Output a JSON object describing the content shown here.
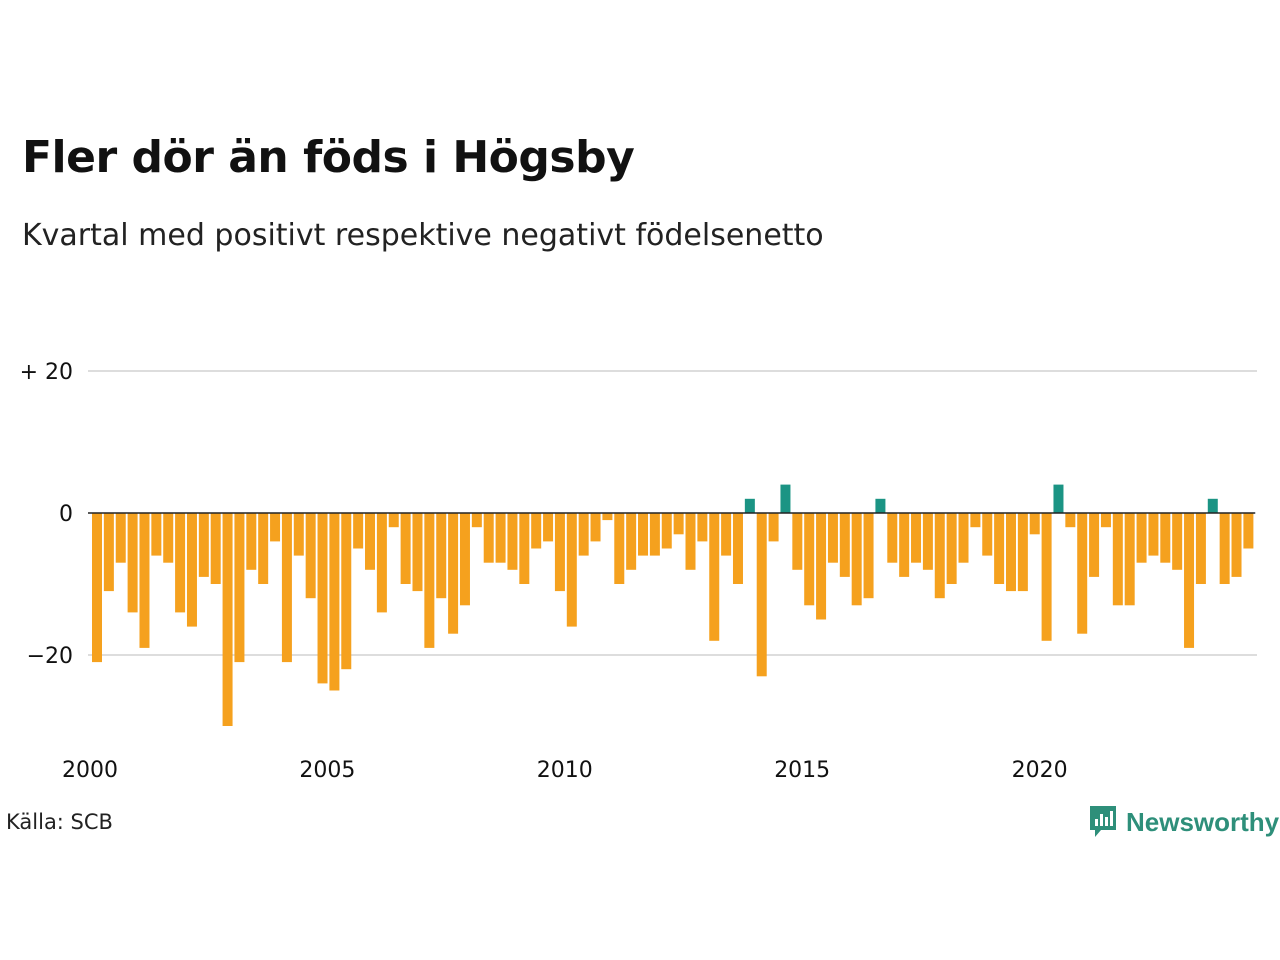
{
  "title": "Fler dör än föds i Högsby",
  "subtitle": "Kvartal med positivt respektive negativt födelsenetto",
  "source": "Källa: SCB",
  "brand": "Newsworthy",
  "colors": {
    "negative": "#f5a11e",
    "positive": "#1b9484",
    "grid": "#dddddd",
    "zero_line": "#222222",
    "brand": "#2e8f7a"
  },
  "chart_data": {
    "type": "bar",
    "title": "Fler dör än föds i Högsby",
    "subtitle": "Kvartal med positivt respektive negativt födelsenetto",
    "xlabel": "",
    "ylabel": "",
    "ylim": [
      -33,
      33
    ],
    "y_ticks": [
      {
        "value": 20,
        "label": "+ 20"
      },
      {
        "value": 0,
        "label": "0"
      },
      {
        "value": -20,
        "label": "−20"
      }
    ],
    "x_ticks": [
      "2000",
      "2005",
      "2010",
      "2015",
      "2020"
    ],
    "grid": true,
    "legend": "none",
    "start_year": 2000,
    "values": [
      -21,
      -11,
      -7,
      -14,
      -19,
      -6,
      -7,
      -14,
      -16,
      -9,
      -10,
      -30,
      -21,
      -8,
      -10,
      -4,
      -21,
      -6,
      -12,
      -24,
      -25,
      -22,
      -5,
      -8,
      -14,
      -2,
      -10,
      -11,
      -19,
      -12,
      -17,
      -13,
      -2,
      -7,
      -7,
      -8,
      -10,
      -5,
      -4,
      -11,
      -16,
      -6,
      -4,
      -1,
      -10,
      -8,
      -6,
      -6,
      -5,
      -3,
      -8,
      -4,
      -18,
      -6,
      -10,
      2,
      -23,
      -4,
      4,
      -8,
      -13,
      -15,
      -7,
      -9,
      -13,
      -12,
      2,
      -7,
      -9,
      -7,
      -8,
      -12,
      -10,
      -7,
      -2,
      -6,
      -10,
      -11,
      -11,
      -3,
      -18,
      4,
      -2,
      -17,
      -9,
      -2,
      -13,
      -13,
      -7,
      -6,
      -7,
      -8,
      -19,
      -10,
      2,
      -10,
      -9,
      -5
    ]
  }
}
